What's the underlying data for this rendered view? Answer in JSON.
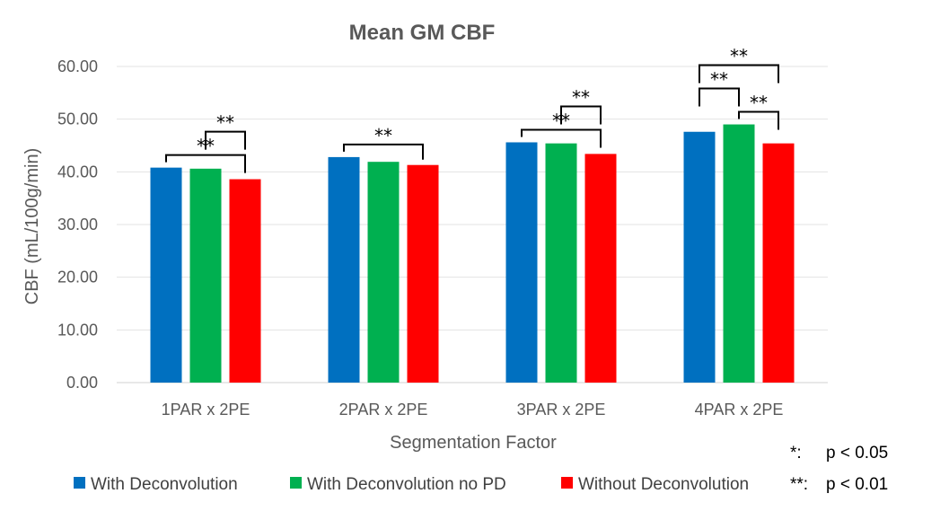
{
  "chart_data": {
    "type": "bar",
    "title": "Mean GM CBF",
    "xlabel": "Segmentation Factor",
    "ylabel": "CBF (mL/100g/min)",
    "ylim": [
      0,
      60
    ],
    "yticks": [
      "0.00",
      "10.00",
      "20.00",
      "30.00",
      "40.00",
      "50.00",
      "60.00"
    ],
    "grid": true,
    "legend_position": "bottom",
    "categories": [
      "1PAR x 2PE",
      "2PAR x 2PE",
      "3PAR x 2PE",
      "4PAR x 2PE"
    ],
    "series": [
      {
        "name": "With Deconvolution",
        "color": "#0070C0",
        "values": [
          40.8,
          42.8,
          45.6,
          47.6
        ]
      },
      {
        "name": "With Deconvolution no PD",
        "color": "#00B050",
        "values": [
          40.6,
          41.9,
          45.4,
          49.0
        ]
      },
      {
        "name": "Without Deconvolution",
        "color": "#FF0000",
        "values": [
          38.6,
          41.3,
          43.4,
          45.4
        ]
      }
    ],
    "significance": [
      {
        "category": 0,
        "from": 0,
        "to": 2,
        "label": "**",
        "level": 0
      },
      {
        "category": 0,
        "from": 1,
        "to": 2,
        "label": "**",
        "level": 1
      },
      {
        "category": 1,
        "from": 0,
        "to": 2,
        "label": "**",
        "level": 0
      },
      {
        "category": 2,
        "from": 0,
        "to": 2,
        "label": "**",
        "level": 0
      },
      {
        "category": 2,
        "from": 1,
        "to": 2,
        "label": "**",
        "level": 1
      },
      {
        "category": 3,
        "from": 0,
        "to": 2,
        "label": "**",
        "level": 2
      },
      {
        "category": 3,
        "from": 0,
        "to": 1,
        "label": "**",
        "level": 1
      },
      {
        "category": 3,
        "from": 1,
        "to": 2,
        "label": "**",
        "level": 0
      }
    ],
    "significance_legend": [
      {
        "symbol": "*:",
        "text": "p < 0.05"
      },
      {
        "symbol": "**:",
        "text": "p < 0.01"
      }
    ]
  }
}
